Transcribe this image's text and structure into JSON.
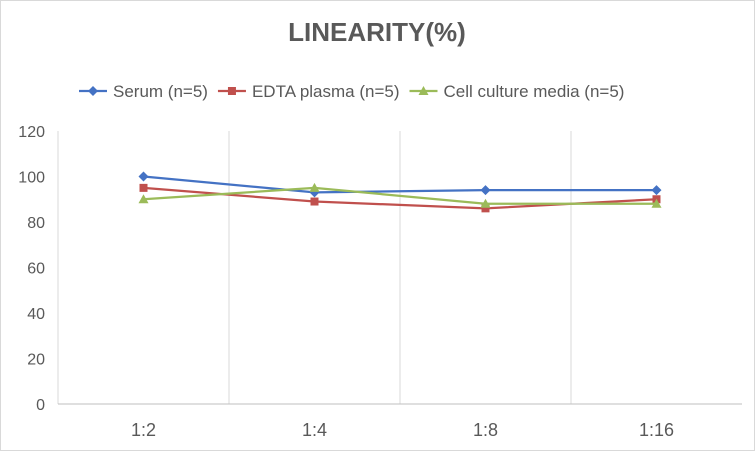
{
  "chart_data": {
    "type": "line",
    "title": "LINEARITY(%)",
    "categories": [
      "1:2",
      "1:4",
      "1:8",
      "1:16"
    ],
    "ylim": [
      0,
      120
    ],
    "yticks": [
      0,
      20,
      40,
      60,
      80,
      100,
      120
    ],
    "grid": "vertical",
    "legend_position": "top",
    "series": [
      {
        "name": "Serum (n=5)",
        "color": "#4472c4",
        "marker": "diamond",
        "values": [
          100,
          93,
          94,
          94
        ]
      },
      {
        "name": "EDTA plasma (n=5)",
        "color": "#c0504d",
        "marker": "square",
        "values": [
          95,
          89,
          86,
          90
        ]
      },
      {
        "name": "Cell culture media (n=5)",
        "color": "#9bbb59",
        "marker": "triangle",
        "values": [
          90,
          95,
          88,
          88
        ]
      }
    ]
  }
}
